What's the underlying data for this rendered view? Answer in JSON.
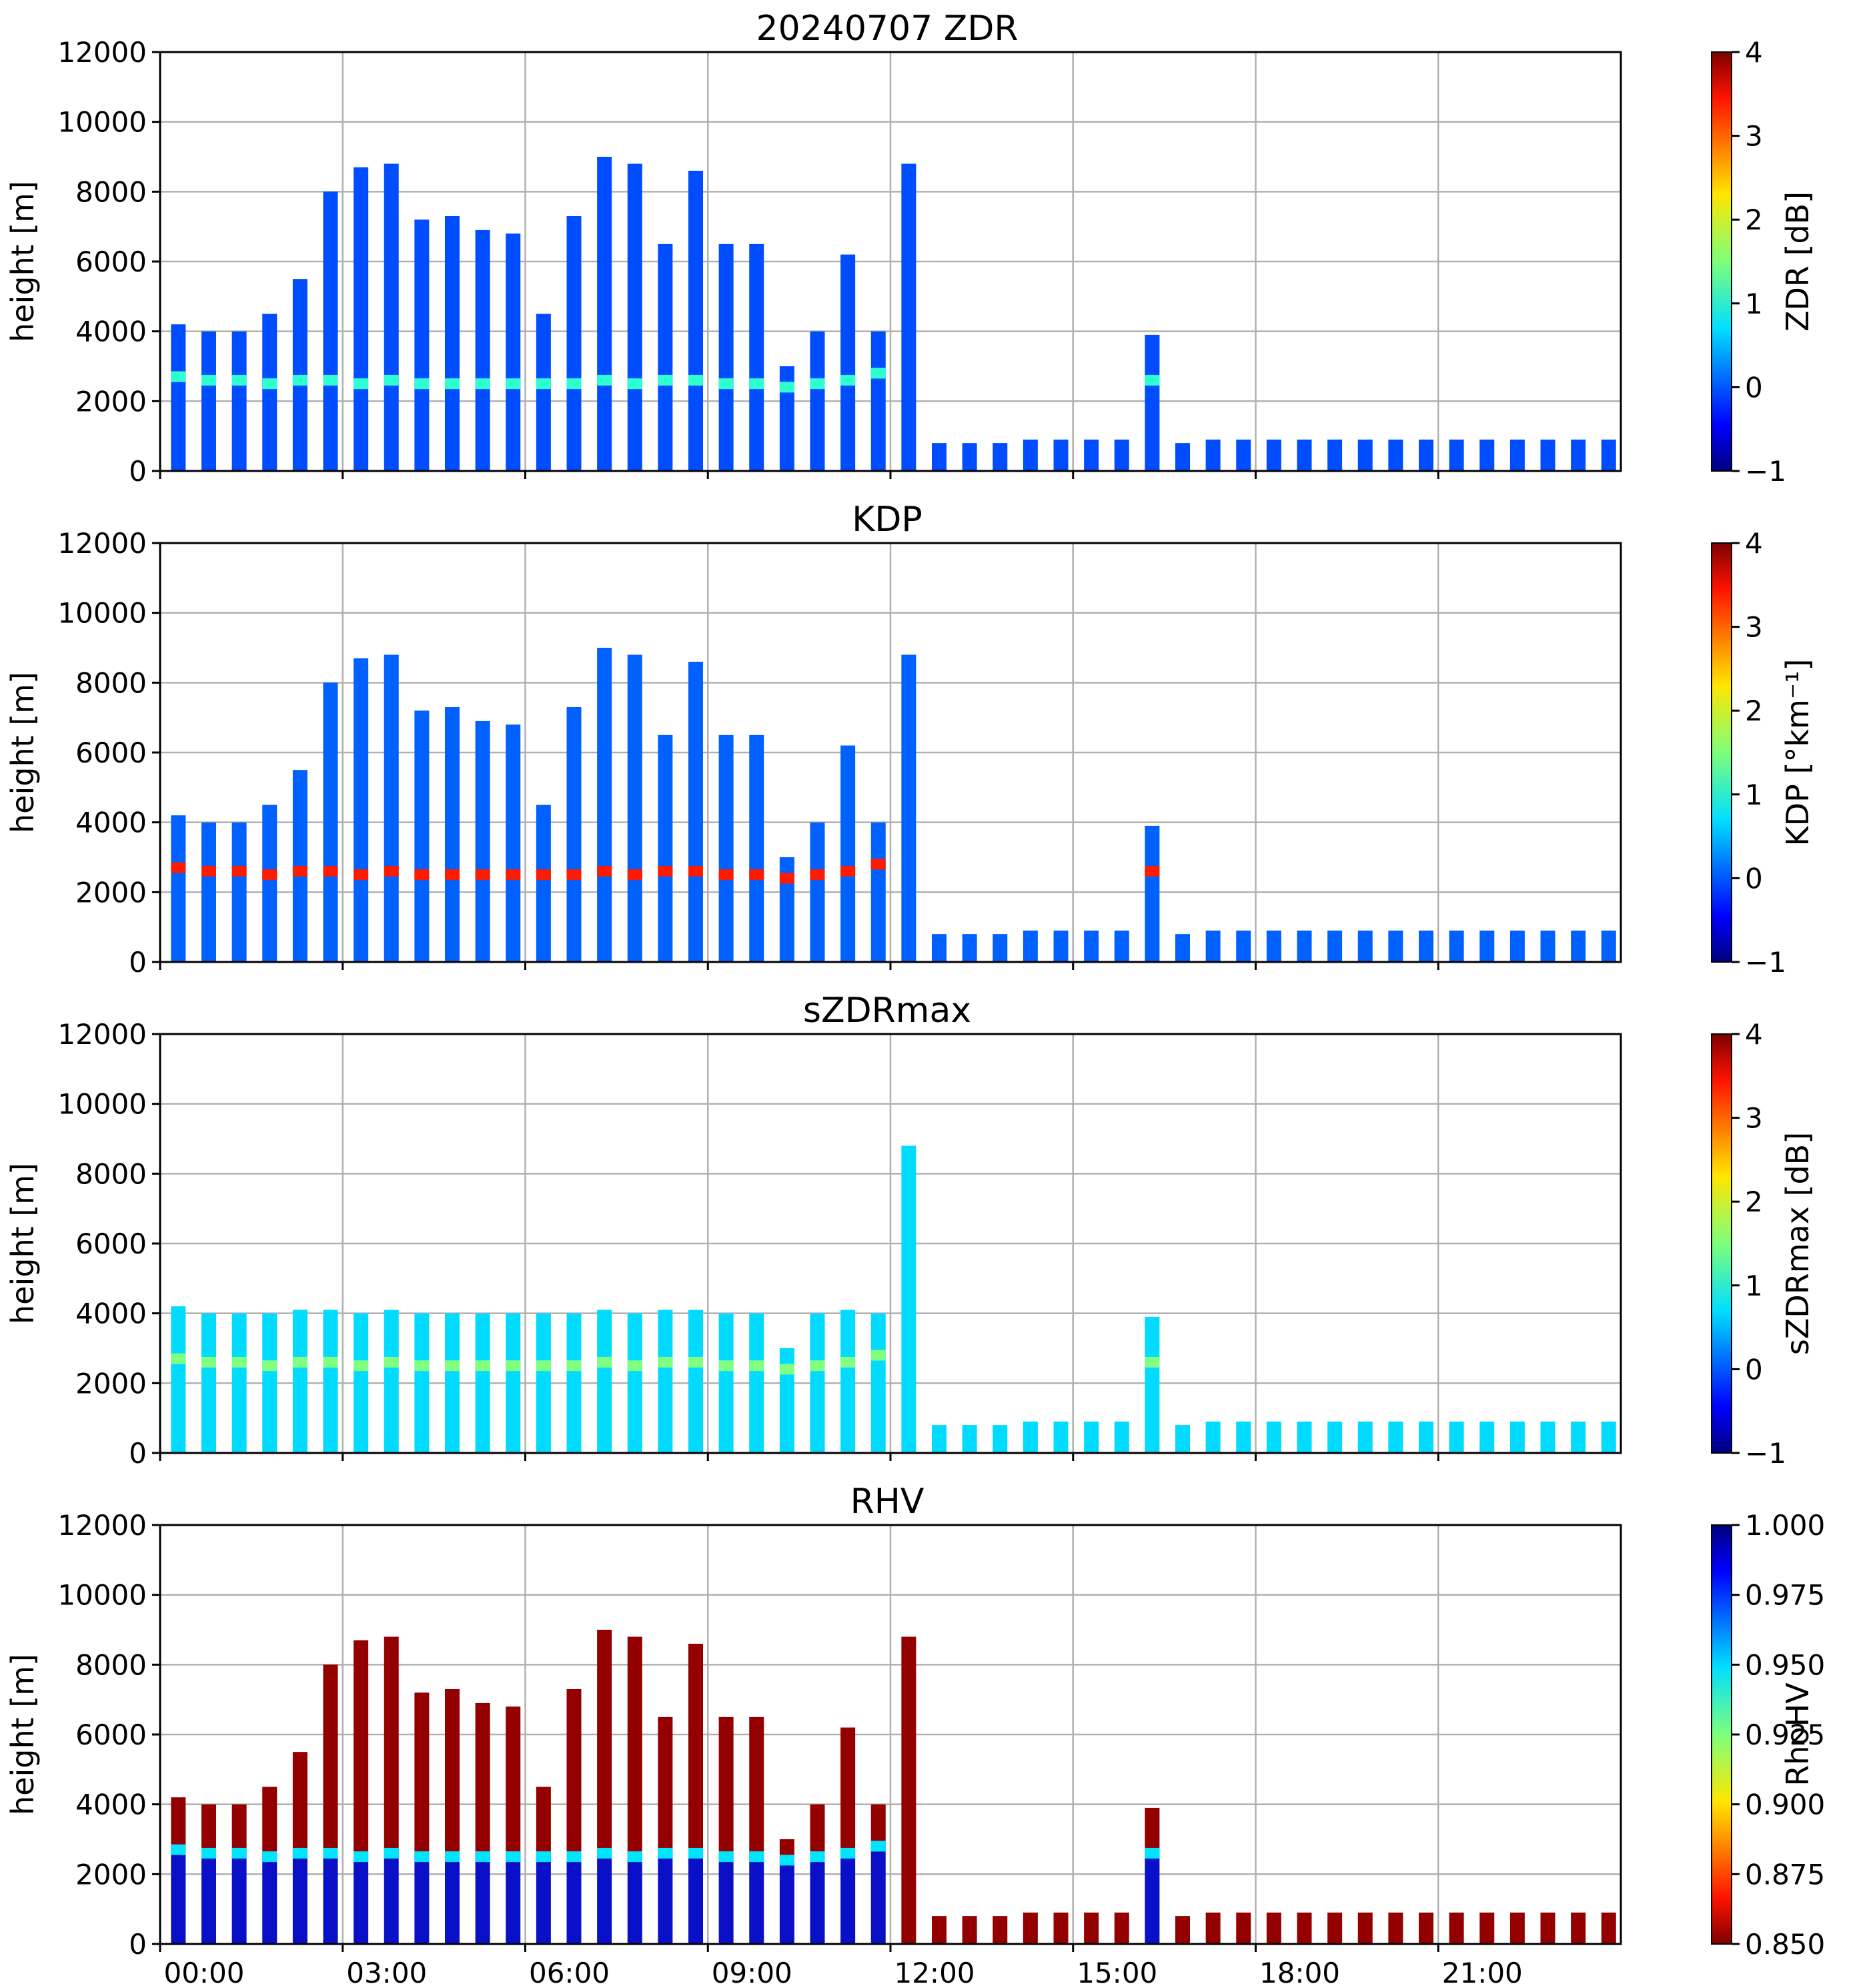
{
  "figure_title": "20240707 ZDR",
  "colors": {
    "background": "#ffffff",
    "frame": "#000000",
    "grid": "#b0b0b0"
  },
  "chart_data": [
    {
      "type": "heatmap",
      "panel_id": "zdr",
      "title": "20240707 ZDR",
      "xlabel": "",
      "ylabel": "height [m]",
      "ylim": [
        0,
        12000
      ],
      "yticks": [
        "0",
        "2000",
        "4000",
        "6000",
        "8000",
        "10000",
        "12000"
      ],
      "xticks": [
        "00:00",
        "03:00",
        "06:00",
        "09:00",
        "12:00",
        "15:00",
        "18:00",
        "21:00"
      ],
      "show_xtick_labels": false,
      "grid": true,
      "colormap": "jet",
      "colorbar": {
        "label": "ZDR [dB]",
        "range": [
          -1,
          4
        ],
        "ticks": [
          "−1",
          "0",
          "1",
          "2",
          "3",
          "4"
        ],
        "reversed": false
      }
    },
    {
      "type": "heatmap",
      "panel_id": "kdp",
      "title": "KDP",
      "xlabel": "",
      "ylabel": "height [m]",
      "ylim": [
        0,
        12000
      ],
      "yticks": [
        "0",
        "2000",
        "4000",
        "6000",
        "8000",
        "10000",
        "12000"
      ],
      "xticks": [
        "00:00",
        "03:00",
        "06:00",
        "09:00",
        "12:00",
        "15:00",
        "18:00",
        "21:00"
      ],
      "show_xtick_labels": false,
      "grid": true,
      "colormap": "jet",
      "colorbar": {
        "label": "KDP [°km⁻¹]",
        "range": [
          -1,
          4
        ],
        "ticks": [
          "−1",
          "0",
          "1",
          "2",
          "3",
          "4"
        ],
        "reversed": false
      }
    },
    {
      "type": "heatmap",
      "panel_id": "szdrmax",
      "title": "sZDRmax",
      "xlabel": "",
      "ylabel": "height [m]",
      "ylim": [
        0,
        12000
      ],
      "yticks": [
        "0",
        "2000",
        "4000",
        "6000",
        "8000",
        "10000",
        "12000"
      ],
      "xticks": [
        "00:00",
        "03:00",
        "06:00",
        "09:00",
        "12:00",
        "15:00",
        "18:00",
        "21:00"
      ],
      "show_xtick_labels": false,
      "grid": true,
      "colormap": "jet",
      "colorbar": {
        "label": "sZDRmax [dB]",
        "range": [
          -1,
          4
        ],
        "ticks": [
          "−1",
          "0",
          "1",
          "2",
          "3",
          "4"
        ],
        "reversed": false
      }
    },
    {
      "type": "heatmap",
      "panel_id": "rhv",
      "title": "RHV",
      "xlabel": "",
      "ylabel": "height [m]",
      "ylim": [
        0,
        12000
      ],
      "yticks": [
        "0",
        "2000",
        "4000",
        "6000",
        "8000",
        "10000",
        "12000"
      ],
      "xticks": [
        "00:00",
        "03:00",
        "06:00",
        "09:00",
        "12:00",
        "15:00",
        "18:00",
        "21:00"
      ],
      "show_xtick_labels": true,
      "grid": true,
      "colormap": "jet_r",
      "colorbar": {
        "label": "RhoHV",
        "range": [
          0.85,
          1.0
        ],
        "ticks": [
          "0.850",
          "0.875",
          "0.900",
          "0.925",
          "0.950",
          "0.975",
          "1.000"
        ],
        "reversed": true
      }
    }
  ],
  "scans": {
    "time_hours": [
      0.3,
      0.8,
      1.3,
      1.8,
      2.3,
      2.8,
      3.3,
      3.8,
      4.3,
      4.8,
      5.3,
      5.8,
      6.3,
      6.8,
      7.3,
      7.8,
      8.3,
      8.8,
      9.3,
      9.8,
      10.3,
      10.8,
      11.3,
      11.8,
      12.3,
      12.8,
      13.3,
      13.8,
      14.3,
      14.8,
      15.3,
      15.8,
      16.3,
      16.8,
      17.3,
      17.8,
      18.3,
      18.8,
      19.3,
      19.8,
      20.3,
      20.8,
      21.3,
      21.8,
      22.3,
      22.8,
      23.3,
      23.8
    ],
    "top_height_m": [
      4200,
      4000,
      4000,
      4500,
      5500,
      8000,
      8700,
      8800,
      7200,
      7300,
      6900,
      6800,
      4500,
      7300,
      9000,
      8800,
      6500,
      8600,
      6500,
      6500,
      3000,
      4000,
      6200,
      4000,
      8800,
      800,
      800,
      800,
      900,
      900,
      900,
      900,
      3900,
      800,
      900,
      900,
      900,
      900,
      900,
      900,
      900,
      900,
      900,
      900,
      900,
      900,
      900,
      900
    ],
    "melting_layer_m": [
      2700,
      2600,
      2600,
      2500,
      2600,
      2600,
      2500,
      2600,
      2500,
      2500,
      2500,
      2500,
      2500,
      2500,
      2600,
      2500,
      2600,
      2600,
      2500,
      2500,
      2400,
      2500,
      2600,
      2800,
      0,
      0,
      0,
      0,
      0,
      0,
      0,
      0,
      2600,
      0,
      0,
      0,
      0,
      0,
      0,
      0,
      0,
      0,
      0,
      0,
      0,
      0,
      0,
      0
    ]
  }
}
